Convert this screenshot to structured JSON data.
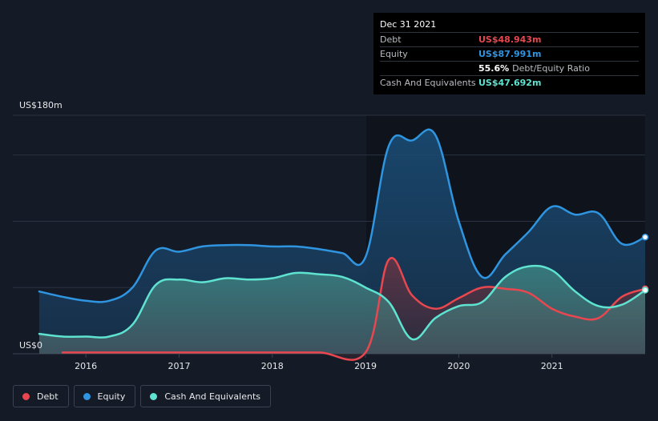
{
  "chart_data": {
    "type": "area",
    "ylabel_top": "US$180m",
    "ylabel_bottom": "US$0",
    "ylim": [
      0,
      180
    ],
    "xlim": [
      2015.5,
      2022.0
    ],
    "x_ticks": [
      {
        "label": "2016",
        "value": 2016.0
      },
      {
        "label": "2017",
        "value": 2017.0
      },
      {
        "label": "2018",
        "value": 2018.0
      },
      {
        "label": "2019",
        "value": 2019.0
      },
      {
        "label": "2020",
        "value": 2020.0
      },
      {
        "label": "2021",
        "value": 2021.0
      }
    ],
    "series": [
      {
        "name": "Equity",
        "color": "#2f95e0",
        "points": [
          [
            2015.5,
            47
          ],
          [
            2015.75,
            43
          ],
          [
            2016.0,
            40
          ],
          [
            2016.25,
            40
          ],
          [
            2016.5,
            50
          ],
          [
            2016.75,
            78
          ],
          [
            2017.0,
            77
          ],
          [
            2017.25,
            81
          ],
          [
            2017.5,
            82
          ],
          [
            2017.75,
            82
          ],
          [
            2018.0,
            81
          ],
          [
            2018.25,
            81
          ],
          [
            2018.5,
            79
          ],
          [
            2018.75,
            76
          ],
          [
            2019.0,
            73
          ],
          [
            2019.25,
            157
          ],
          [
            2019.5,
            161
          ],
          [
            2019.75,
            165
          ],
          [
            2020.0,
            100
          ],
          [
            2020.25,
            58
          ],
          [
            2020.5,
            75
          ],
          [
            2020.75,
            92
          ],
          [
            2021.0,
            111
          ],
          [
            2021.25,
            105
          ],
          [
            2021.5,
            106
          ],
          [
            2021.75,
            83
          ],
          [
            2022.0,
            88
          ]
        ]
      },
      {
        "name": "Debt",
        "color": "#e8474f",
        "points": [
          [
            2015.75,
            1
          ],
          [
            2016.0,
            1
          ],
          [
            2016.5,
            1
          ],
          [
            2017.0,
            1
          ],
          [
            2017.5,
            1
          ],
          [
            2018.0,
            1
          ],
          [
            2018.5,
            1
          ],
          [
            2019.0,
            1
          ],
          [
            2019.25,
            71
          ],
          [
            2019.5,
            44
          ],
          [
            2019.75,
            34
          ],
          [
            2020.0,
            42
          ],
          [
            2020.25,
            50
          ],
          [
            2020.5,
            49
          ],
          [
            2020.75,
            46
          ],
          [
            2021.0,
            34
          ],
          [
            2021.25,
            28
          ],
          [
            2021.5,
            27
          ],
          [
            2021.75,
            43
          ],
          [
            2022.0,
            49
          ]
        ]
      },
      {
        "name": "Cash And Equivalents",
        "color": "#5fe3d1",
        "points": [
          [
            2015.5,
            15
          ],
          [
            2015.75,
            13
          ],
          [
            2016.0,
            13
          ],
          [
            2016.25,
            13
          ],
          [
            2016.5,
            22
          ],
          [
            2016.75,
            52
          ],
          [
            2017.0,
            56
          ],
          [
            2017.25,
            54
          ],
          [
            2017.5,
            57
          ],
          [
            2017.75,
            56
          ],
          [
            2018.0,
            57
          ],
          [
            2018.25,
            61
          ],
          [
            2018.5,
            60
          ],
          [
            2018.75,
            58
          ],
          [
            2019.0,
            50
          ],
          [
            2019.25,
            39
          ],
          [
            2019.5,
            11
          ],
          [
            2019.75,
            27
          ],
          [
            2020.0,
            36
          ],
          [
            2020.25,
            39
          ],
          [
            2020.5,
            58
          ],
          [
            2020.75,
            66
          ],
          [
            2021.0,
            63
          ],
          [
            2021.25,
            47
          ],
          [
            2021.5,
            36
          ],
          [
            2021.75,
            37
          ],
          [
            2022.0,
            48
          ]
        ]
      }
    ]
  },
  "tooltip": {
    "date": "Dec 31 2021",
    "rows": [
      {
        "label": "Debt",
        "value": "US$48.943m"
      },
      {
        "label": "Equity",
        "value": "US$87.991m"
      },
      {
        "label": "",
        "value": "55.6%",
        "suffix": "Debt/Equity Ratio"
      },
      {
        "label": "Cash And Equivalents",
        "value": "US$47.692m"
      }
    ]
  },
  "legend": [
    {
      "label": "Debt",
      "color": "#e8474f"
    },
    {
      "label": "Equity",
      "color": "#2f95e0"
    },
    {
      "label": "Cash And Equivalents",
      "color": "#5fe3d1"
    }
  ]
}
